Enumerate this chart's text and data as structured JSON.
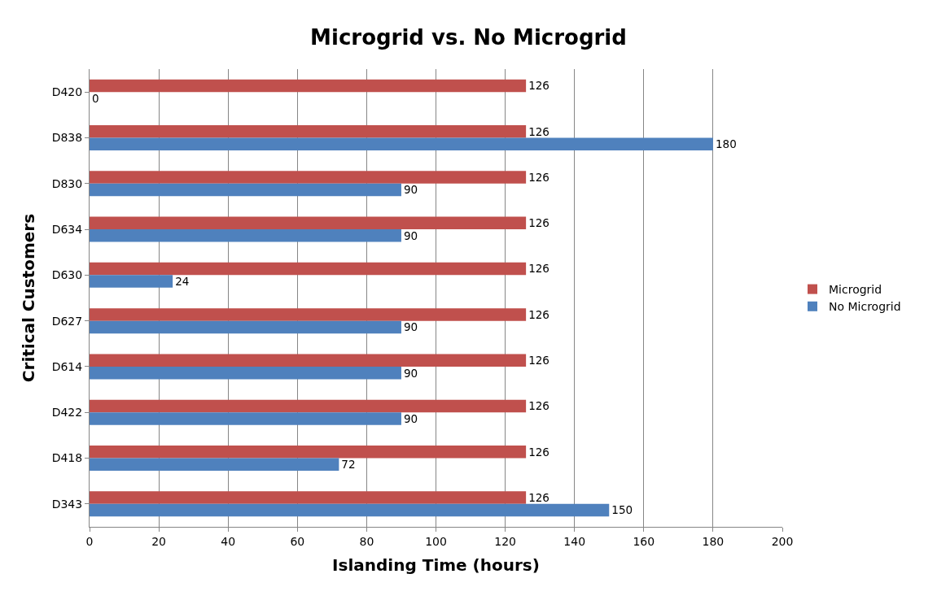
{
  "chart_data": {
    "type": "bar",
    "orientation": "horizontal",
    "title": "Microgrid vs. No Microgrid",
    "xlabel": "Islanding Time (hours)",
    "ylabel": "Critical Customers",
    "categories": [
      "D420",
      "D838",
      "D830",
      "D634",
      "D630",
      "D627",
      "D614",
      "D422",
      "D418",
      "D343"
    ],
    "series": [
      {
        "name": "Microgrid",
        "color": "#c0504d",
        "values": [
          126,
          126,
          126,
          126,
          126,
          126,
          126,
          126,
          126,
          126
        ]
      },
      {
        "name": "No Microgrid",
        "color": "#4f81bd",
        "values": [
          0,
          180,
          90,
          90,
          24,
          90,
          90,
          90,
          72,
          150
        ]
      }
    ],
    "xlim": [
      0,
      200
    ],
    "xticks": [
      0,
      20,
      40,
      60,
      80,
      100,
      120,
      140,
      160,
      180,
      200
    ],
    "grid": "x",
    "legend": "right",
    "data_labels": true
  }
}
